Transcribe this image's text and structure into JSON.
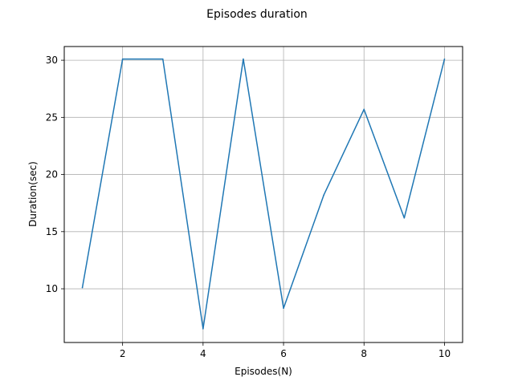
{
  "chart_data": {
    "type": "line",
    "title": "Episodes duration",
    "xlabel": "Episodes(N)",
    "ylabel": "Duration(sec)",
    "xlim": [
      0.55,
      10.45
    ],
    "ylim": [
      5.3,
      31.2
    ],
    "xticks": [
      2,
      4,
      6,
      8,
      10
    ],
    "yticks": [
      10,
      15,
      20,
      25,
      30
    ],
    "grid": true,
    "series": [
      {
        "name": "duration",
        "color": "#1f77b4",
        "x": [
          1,
          2,
          3,
          4,
          5,
          6,
          7,
          8,
          9,
          10
        ],
        "y": [
          10.1,
          30.1,
          30.1,
          6.5,
          30.1,
          8.3,
          18.2,
          25.7,
          16.2,
          30.1
        ]
      }
    ]
  }
}
